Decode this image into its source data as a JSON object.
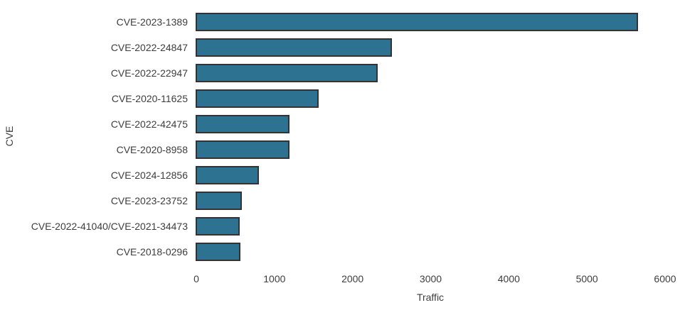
{
  "colors": {
    "background": "#ffffff",
    "bar_fill": "#2e7292",
    "bar_edge": "#333333",
    "text": "#3d3d3d"
  },
  "chart_data": {
    "type": "bar",
    "orientation": "horizontal",
    "title": "",
    "xlabel": "Traffic",
    "ylabel": "CVE",
    "categories": [
      "CVE-2023-1389",
      "CVE-2022-24847",
      "CVE-2022-22947",
      "CVE-2020-11625",
      "CVE-2022-42475",
      "CVE-2020-8958",
      "CVE-2024-12856",
      "CVE-2023-23752",
      "CVE-2022-41040/CVE-2021-34473",
      "CVE-2018-0296"
    ],
    "values": [
      5660,
      2510,
      2330,
      1575,
      1200,
      1200,
      810,
      590,
      560,
      570
    ],
    "xlim": [
      0,
      6000
    ],
    "xticks": [
      0,
      1000,
      2000,
      3000,
      4000,
      5000,
      6000
    ],
    "grid": false,
    "legend": null
  }
}
